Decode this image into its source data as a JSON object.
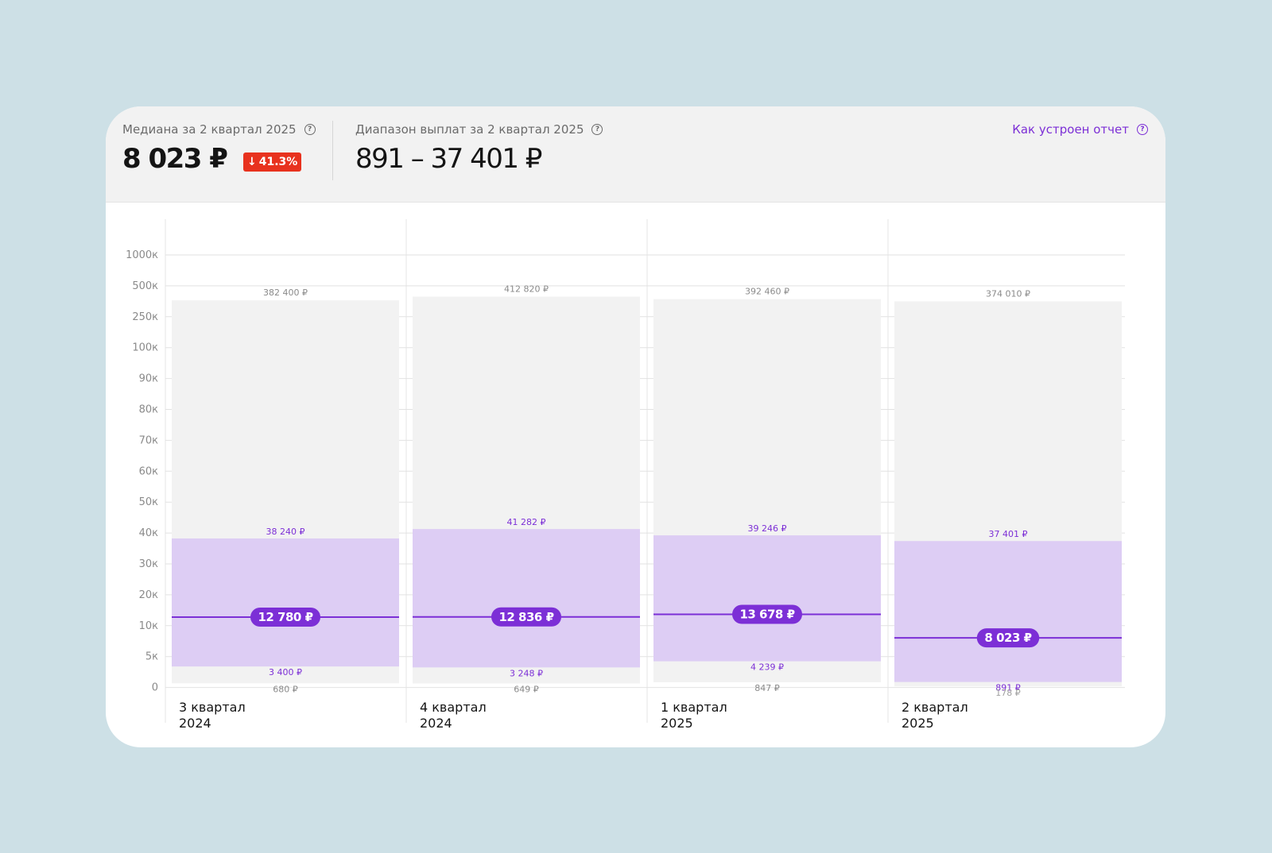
{
  "header": {
    "median_label": "Медиана за 2 квартал 2025",
    "median_value": "8 023 ₽",
    "change_arrow": "↓",
    "change_value": "41.3%",
    "range_label": "Диапазон выплат за 2 квартал 2025",
    "range_value": "891 – 37 401 ₽",
    "report_link": "Как устроен отчет",
    "help_icon": "question-circle-icon",
    "help_glyph": "?"
  },
  "colors": {
    "accent": "#7c2fd6",
    "range_band": "#ddcdf4",
    "full_band": "#f2f2f2",
    "badge_red": "#e8321e"
  },
  "chart_data": {
    "type": "range-bar",
    "title": "",
    "xlabel": "",
    "ylabel": "",
    "y_ticks": [
      "1000к",
      "500к",
      "250к",
      "100к",
      "90к",
      "80к",
      "70к",
      "60к",
      "50к",
      "40к",
      "30к",
      "20к",
      "10к",
      "5к",
      "0"
    ],
    "y_tick_values": [
      1000000,
      500000,
      250000,
      100000,
      90000,
      80000,
      70000,
      60000,
      50000,
      40000,
      30000,
      20000,
      10000,
      5000,
      0
    ],
    "grid": true,
    "periods": [
      {
        "label_line1": "3 квартал",
        "label_line2": "2024",
        "max": 382400,
        "max_label": "382 400 ₽",
        "p_high": 38240,
        "p_high_label": "38 240 ₽",
        "median": 12780,
        "median_label": "12 780 ₽",
        "p_low": 3400,
        "p_low_label": "3 400 ₽",
        "min": 680,
        "min_label": "680 ₽"
      },
      {
        "label_line1": "4 квартал",
        "label_line2": "2024",
        "max": 412820,
        "max_label": "412 820 ₽",
        "p_high": 41282,
        "p_high_label": "41 282 ₽",
        "median": 12836,
        "median_label": "12 836 ₽",
        "p_low": 3248,
        "p_low_label": "3 248 ₽",
        "min": 649,
        "min_label": "649 ₽"
      },
      {
        "label_line1": "1 квартал",
        "label_line2": "2025",
        "max": 392460,
        "max_label": "392 460 ₽",
        "p_high": 39246,
        "p_high_label": "39 246 ₽",
        "median": 13678,
        "median_label": "13 678 ₽",
        "p_low": 4239,
        "p_low_label": "4 239 ₽",
        "min": 847,
        "min_label": "847 ₽"
      },
      {
        "label_line1": "2 квартал",
        "label_line2": "2025",
        "max": 374010,
        "max_label": "374 010 ₽",
        "p_high": 37401,
        "p_high_label": "37 401 ₽",
        "median": 8023,
        "median_label": "8 023 ₽",
        "p_low": 891,
        "p_low_label": "891 ₽",
        "min": 178,
        "min_label": "178 ₽"
      }
    ]
  }
}
